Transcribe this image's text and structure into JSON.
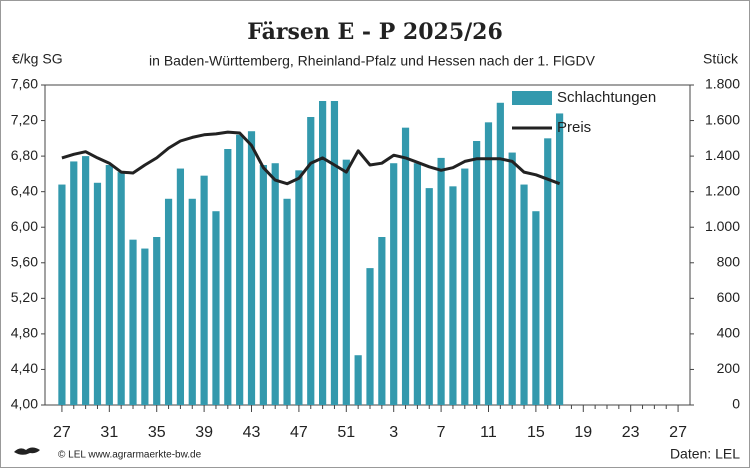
{
  "chart_data": {
    "type": "bar",
    "title": "Färsen E - P 2025/26",
    "subtitle": "in Baden-Württemberg, Rheinland-Pfalz und Hessen nach der 1. FlGDV",
    "y_label": "€/kg SG",
    "y2_label": "Stück",
    "footer_left": "© LEL www.agrarmaerkte-bw.de",
    "footer_right": "Daten: LEL",
    "categories": [
      "27",
      null,
      null,
      null,
      "31",
      null,
      null,
      null,
      "35",
      null,
      null,
      null,
      "39",
      null,
      null,
      null,
      "43",
      null,
      null,
      null,
      "47",
      null,
      null,
      null,
      "51",
      null,
      null,
      null,
      "3",
      null,
      null,
      null,
      "7",
      null,
      null,
      null,
      "11",
      null,
      null,
      null,
      "15",
      null,
      null,
      null,
      "19",
      null,
      null,
      null,
      "23",
      null,
      null,
      null,
      "27"
    ],
    "series": [
      {
        "name": "Schlachtungen",
        "type": "bar",
        "axis": "y2",
        "color": "#3399ad",
        "values": [
          1240,
          1370,
          1400,
          1250,
          1350,
          1310,
          930,
          880,
          945,
          1160,
          1330,
          1160,
          1290,
          1090,
          1440,
          1520,
          1540,
          1350,
          1360,
          1160,
          1320,
          1620,
          1710,
          1710,
          1380,
          280,
          770,
          945,
          1360,
          1560,
          1360,
          1220,
          1390,
          1230,
          1330,
          1485,
          1590,
          1700,
          1420,
          1240,
          1090,
          1500,
          1640,
          null,
          null,
          null,
          null,
          null,
          null,
          null,
          null,
          null,
          null
        ]
      },
      {
        "name": "Preis",
        "type": "line",
        "axis": "y",
        "color": "#222222",
        "values": [
          6.78,
          6.82,
          6.85,
          6.78,
          6.72,
          6.62,
          6.61,
          6.7,
          6.78,
          6.89,
          6.97,
          7.01,
          7.04,
          7.05,
          7.07,
          7.06,
          6.92,
          6.67,
          6.53,
          6.49,
          6.55,
          6.72,
          6.78,
          6.7,
          6.62,
          6.86,
          6.7,
          6.72,
          6.81,
          6.78,
          6.73,
          6.68,
          6.64,
          6.67,
          6.74,
          6.77,
          6.77,
          6.77,
          6.74,
          6.62,
          6.59,
          6.54,
          6.49,
          null,
          null,
          null,
          null,
          null,
          null,
          null,
          null,
          null,
          null
        ]
      }
    ],
    "ylim": [
      4,
      7.6
    ],
    "yticks": [
      {
        "value": 4,
        "label": "4,00"
      },
      {
        "value": 4.4,
        "label": "4,40"
      },
      {
        "value": 4.8,
        "label": "4,80"
      },
      {
        "value": 5.2,
        "label": "5,20"
      },
      {
        "value": 5.6,
        "label": "5,60"
      },
      {
        "value": 6,
        "label": "6,00"
      },
      {
        "value": 6.4,
        "label": "6,40"
      },
      {
        "value": 6.8,
        "label": "6,80"
      },
      {
        "value": 7.2,
        "label": "7,20"
      },
      {
        "value": 7.6,
        "label": "7,60"
      }
    ],
    "y2lim": [
      0,
      1800
    ],
    "y2ticks": [
      0,
      200,
      400,
      600,
      800,
      {
        "value": 1000,
        "label": "1.000"
      },
      {
        "value": 1200,
        "label": "1.200"
      },
      {
        "value": 1400,
        "label": "1.400"
      },
      {
        "value": 1600,
        "label": "1.600"
      },
      {
        "value": 1800,
        "label": "1.800"
      }
    ],
    "grid": false,
    "legend": "upper right"
  }
}
